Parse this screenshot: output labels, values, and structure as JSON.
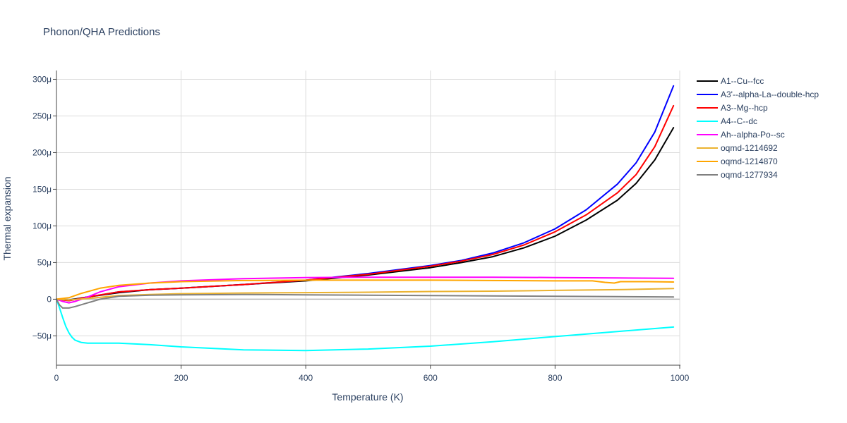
{
  "chart_data": {
    "type": "line",
    "title": "Phonon/QHA Predictions",
    "xlabel": "Temperature (K)",
    "ylabel": "Thermal expansion",
    "xlim": [
      0,
      1000
    ],
    "ylim": [
      -90,
      312
    ],
    "xticks": [
      0,
      200,
      400,
      600,
      800,
      1000
    ],
    "xtick_labels": [
      "0",
      "200",
      "400",
      "600",
      "800",
      "1000"
    ],
    "yticks": [
      -50,
      0,
      50,
      100,
      150,
      200,
      250,
      300
    ],
    "ytick_labels": [
      "−50μ",
      "0",
      "50μ",
      "100μ",
      "150μ",
      "200μ",
      "250μ",
      "300μ"
    ],
    "grid": true,
    "legend_position": "top-right",
    "series": [
      {
        "name": "A1--Cu--fcc",
        "color": "#000000",
        "x": [
          0,
          20,
          50,
          100,
          150,
          200,
          300,
          400,
          500,
          600,
          650,
          700,
          750,
          800,
          850,
          900,
          930,
          960,
          990
        ],
        "y": [
          0,
          -1,
          3,
          9,
          13,
          15,
          20,
          25,
          33,
          43,
          50,
          58,
          70,
          86,
          108,
          135,
          158,
          190,
          234
        ]
      },
      {
        "name": "A3'--alpha-La--double-hcp",
        "color": "#0000ff",
        "x": [
          0,
          20,
          50,
          100,
          150,
          200,
          300,
          400,
          500,
          600,
          650,
          700,
          750,
          800,
          850,
          900,
          930,
          960,
          990
        ],
        "y": [
          0,
          -2,
          3,
          10,
          13,
          15,
          20,
          26,
          35,
          46,
          53,
          63,
          77,
          96,
          122,
          157,
          186,
          228,
          291
        ]
      },
      {
        "name": "A3--Mg--hcp",
        "color": "#ff0000",
        "x": [
          0,
          20,
          50,
          100,
          150,
          200,
          300,
          400,
          500,
          600,
          650,
          700,
          750,
          800,
          850,
          900,
          930,
          960,
          990
        ],
        "y": [
          0,
          -2,
          3,
          10,
          13,
          15,
          20,
          26,
          34,
          45,
          52,
          61,
          74,
          92,
          115,
          145,
          170,
          208,
          264
        ]
      },
      {
        "name": "A4--C--dc",
        "color": "#00ffff",
        "x": [
          0,
          5,
          10,
          15,
          20,
          25,
          30,
          40,
          50,
          70,
          100,
          150,
          200,
          300,
          400,
          500,
          600,
          700,
          800,
          900,
          990
        ],
        "y": [
          0,
          -12,
          -25,
          -37,
          -46,
          -52,
          -56,
          -59,
          -60,
          -60,
          -60,
          -62,
          -65,
          -69,
          -70,
          -68,
          -64,
          -58,
          -51,
          -44,
          -38
        ]
      },
      {
        "name": "Ah--alpha-Po--sc",
        "color": "#ff00ff",
        "x": [
          0,
          10,
          20,
          30,
          50,
          70,
          100,
          150,
          200,
          300,
          400,
          500,
          600,
          700,
          800,
          900,
          990
        ],
        "y": [
          0,
          -3,
          -5,
          -3,
          3,
          10,
          17,
          22,
          25,
          28,
          29.5,
          30,
          30,
          30,
          29.5,
          29,
          28.5
        ]
      },
      {
        "name": "oqmd-1214692",
        "color": "#ebb22f",
        "x": [
          0,
          20,
          50,
          100,
          150,
          200,
          300,
          400,
          500,
          600,
          700,
          800,
          900,
          990
        ],
        "y": [
          0,
          -1,
          1,
          5,
          6.5,
          7.5,
          8.5,
          9,
          9.5,
          10.5,
          11,
          12,
          13,
          14.5
        ]
      },
      {
        "name": "oqmd-1214870",
        "color": "#ffa500",
        "x": [
          0,
          20,
          40,
          70,
          100,
          150,
          200,
          300,
          400,
          500,
          600,
          700,
          800,
          860,
          880,
          895,
          905,
          950,
          990
        ],
        "y": [
          0,
          2,
          8,
          15,
          19,
          22,
          24,
          25.5,
          26,
          26,
          26,
          25.5,
          25,
          25,
          23,
          22,
          24,
          24,
          23.5
        ]
      },
      {
        "name": "oqmd-1277934",
        "color": "#808080",
        "x": [
          0,
          5,
          10,
          20,
          30,
          50,
          70,
          100,
          150,
          200,
          300,
          400,
          500,
          600,
          700,
          800,
          900,
          990
        ],
        "y": [
          0,
          -8,
          -12,
          -12,
          -10,
          -5,
          0,
          4,
          5.5,
          6,
          6.5,
          6,
          5.5,
          5,
          4.5,
          4,
          3.5,
          3
        ]
      }
    ]
  }
}
